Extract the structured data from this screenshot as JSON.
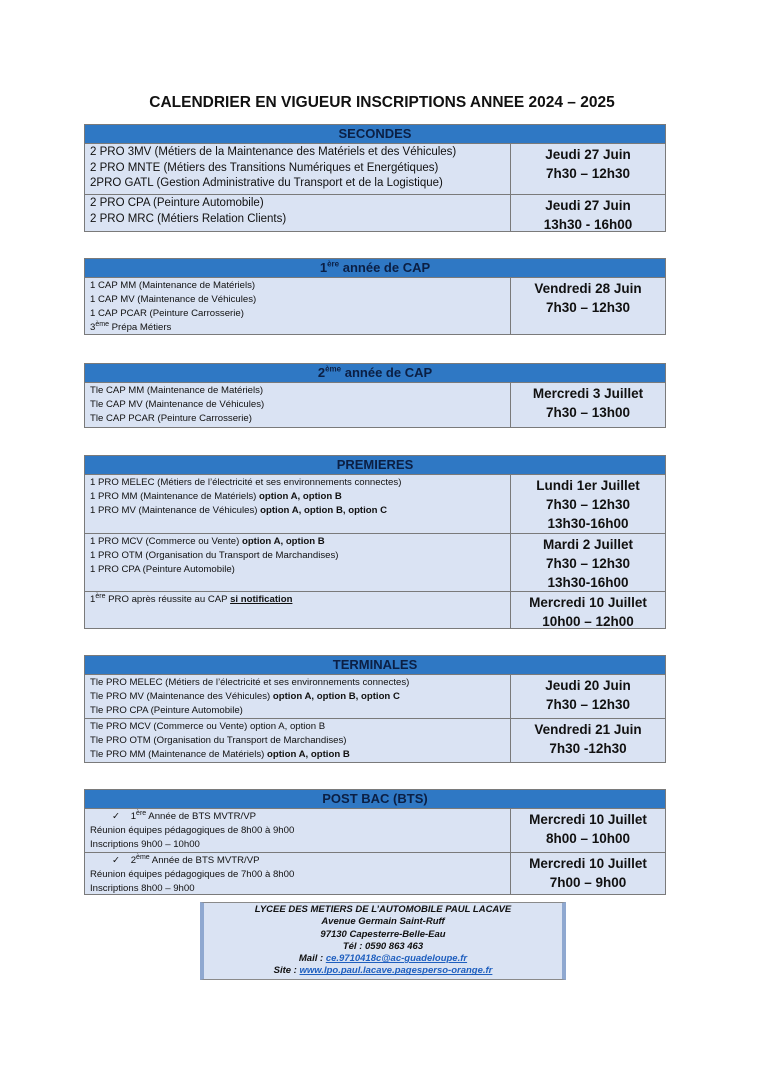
{
  "title": "CALENDRIER EN VIGUEUR INSCRIPTIONS ANNEE 2024 – 2025",
  "colors": {
    "header": "#2f78c4",
    "fill": "#dae3f3",
    "link": "#1f5fbf"
  },
  "tables": [
    {
      "header": [
        {
          "t": "SECONDES"
        }
      ],
      "size": "big",
      "rows": [
        {
          "lines": [
            [
              {
                "t": "2 PRO 3MV (Métiers de la Maintenance des Matériels et des Véhicules)"
              }
            ],
            [
              {
                "t": "2 PRO MNTE (Métiers des Transitions Numériques et Energétiques)"
              }
            ],
            [
              {
                "t": "2PRO GATL (Gestion Administrative du Transport et de la Logistique)"
              }
            ]
          ],
          "schedule": [
            "Jeudi 27 Juin",
            "7h30 – 12h30"
          ]
        },
        {
          "lines": [
            [
              {
                "t": "2 PRO CPA (Peinture Automobile)"
              }
            ],
            [
              {
                "t": "2 PRO MRC (Métiers Relation Clients)"
              }
            ]
          ],
          "schedule": [
            "Jeudi 27 Juin",
            "13h30 - 16h00"
          ]
        }
      ]
    },
    {
      "header": [
        {
          "t": "1"
        },
        {
          "t": "ère",
          "sup": true
        },
        {
          "t": " année de CAP"
        }
      ],
      "size": "small",
      "rows": [
        {
          "lines": [
            [
              {
                "t": "1 CAP MM (Maintenance de Matériels)"
              }
            ],
            [
              {
                "t": "1 CAP MV (Maintenance de Véhicules)"
              }
            ],
            [
              {
                "t": "1 CAP PCAR (Peinture Carrosserie)"
              }
            ],
            [
              {
                "t": "3"
              },
              {
                "t": "ème",
                "sup": true
              },
              {
                "t": " Prépa Métiers"
              }
            ]
          ],
          "schedule": [
            "Vendredi 28 Juin",
            "7h30 – 12h30"
          ]
        }
      ]
    },
    {
      "header": [
        {
          "t": "2"
        },
        {
          "t": "ème",
          "sup": true
        },
        {
          "t": " année de CAP"
        }
      ],
      "size": "small",
      "rows": [
        {
          "lines": [
            [
              {
                "t": "Tle CAP MM (Maintenance de Matériels)"
              }
            ],
            [
              {
                "t": "Tle CAP MV (Maintenance de Véhicules)"
              }
            ],
            [
              {
                "t": "Tle CAP PCAR (Peinture Carrosserie)"
              }
            ]
          ],
          "schedule": [
            "Mercredi 3 Juillet",
            "7h30 – 13h00"
          ]
        }
      ]
    },
    {
      "header": [
        {
          "t": "PREMIERES"
        }
      ],
      "size": "small",
      "rows": [
        {
          "lines": [
            [
              {
                "t": "1 PRO MELEC (Métiers de l’électricité et ses environnements connectes)"
              }
            ],
            [
              {
                "t": "1 PRO MM (Maintenance de Matériels) "
              },
              {
                "t": "option A, option B",
                "b": true
              }
            ],
            [
              {
                "t": "1 PRO MV (Maintenance de Véhicules) "
              },
              {
                "t": "option A, option B, option C",
                "b": true
              }
            ]
          ],
          "schedule": [
            "Lundi 1er Juillet",
            "7h30 – 12h30",
            "13h30-16h00"
          ]
        },
        {
          "lines": [
            [
              {
                "t": "1 PRO MCV (Commerce ou Vente) "
              },
              {
                "t": "option A, option B",
                "b": true
              }
            ],
            [
              {
                "t": "1 PRO OTM (Organisation du Transport de Marchandises)"
              }
            ],
            [
              {
                "t": "1 PRO CPA (Peinture Automobile)"
              }
            ]
          ],
          "schedule": [
            "Mardi 2 Juillet",
            "7h30 – 12h30",
            "13h30-16h00"
          ]
        },
        {
          "lines": [
            [
              {
                "t": "1"
              },
              {
                "t": "ère",
                "sup": true
              },
              {
                "t": " PRO après réussite au CAP "
              },
              {
                "t": "si notification",
                "b": true,
                "u": true
              }
            ]
          ],
          "schedule": [
            "Mercredi 10 Juillet",
            "10h00 – 12h00"
          ]
        }
      ]
    },
    {
      "header": [
        {
          "t": "TERMINALES"
        }
      ],
      "size": "small",
      "rows": [
        {
          "lines": [
            [
              {
                "t": "Tle PRO MELEC (Métiers de l’électricité et ses environnements connectes)"
              }
            ],
            [
              {
                "t": "Tle PRO MV (Maintenance des Véhicules) "
              },
              {
                "t": "option A, option B, option C",
                "b": true
              }
            ],
            [
              {
                "t": "Tle PRO CPA (Peinture Automobile)"
              }
            ]
          ],
          "schedule": [
            "Jeudi 20 Juin",
            "7h30 – 12h30"
          ]
        },
        {
          "lines": [
            [
              {
                "t": "Tle PRO MCV (Commerce ou Vente) option A, option B"
              }
            ],
            [
              {
                "t": "Tle PRO OTM (Organisation du Transport de Marchandises)"
              }
            ],
            [
              {
                "t": "Tle PRO MM (Maintenance de Matériels) "
              },
              {
                "t": "option A, option B",
                "b": true
              }
            ]
          ],
          "schedule": [
            "Vendredi 21 Juin",
            "7h30 -12h30"
          ]
        }
      ]
    },
    {
      "header": [
        {
          "t": "POST BAC (BTS)"
        }
      ],
      "size": "small",
      "rows": [
        {
          "lines": [
            [
              {
                "t": "✓",
                "ind": true
              },
              {
                "t": "    1"
              },
              {
                "t": "ère",
                "sup": true
              },
              {
                "t": " Année de BTS MVTR/VP"
              }
            ],
            [
              {
                "t": "Réunion équipes pédagogiques de 8h00 à 9h00"
              }
            ],
            [
              {
                "t": "Inscriptions 9h00 – 10h00"
              }
            ]
          ],
          "schedule": [
            "Mercredi 10 Juillet",
            "8h00 – 10h00"
          ]
        },
        {
          "lines": [
            [
              {
                "t": "✓",
                "ind": true
              },
              {
                "t": "    2"
              },
              {
                "t": "ème",
                "sup": true
              },
              {
                "t": " Année de BTS MVTR/VP"
              }
            ],
            [
              {
                "t": "Réunion équipes pédagogiques de 7h00 à 8h00"
              }
            ],
            [
              {
                "t": "Inscriptions 8h00 – 9h00"
              }
            ]
          ],
          "schedule": [
            "Mercredi 10 Juillet",
            "7h00 – 9h00"
          ]
        }
      ]
    }
  ],
  "footer": {
    "school": "LYCEE DES METIERS DE L’AUTOMOBILE PAUL LACAVE",
    "street": "Avenue Germain Saint-Ruff",
    "city": "97130 Capesterre-Belle-Eau",
    "phone": "Tél : 0590 863 463",
    "mail_label": "Mail : ",
    "mail": "ce.9710418c@ac-guadeloupe.fr",
    "site_label": "Site : ",
    "site": "www.lpo.paul.lacave.pagesperso-orange.fr"
  }
}
